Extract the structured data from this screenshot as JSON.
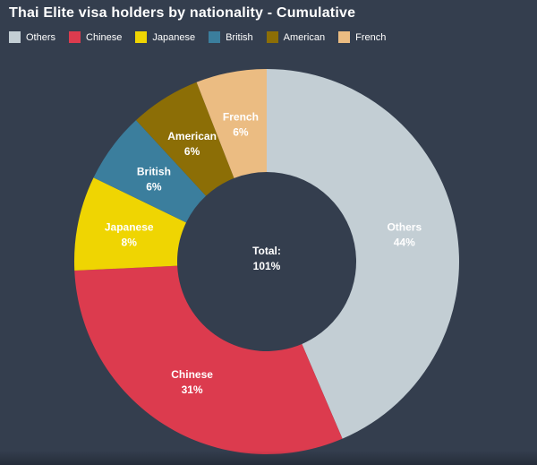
{
  "header": {
    "title": "Thai Elite visa holders by nationality - Cumulative"
  },
  "colors": {
    "background": "#343e4e",
    "title_text": "#ffffff",
    "legend_text": "#ffffff",
    "slice_label_text": "#ffffff"
  },
  "center": {
    "line1": "Total:",
    "line2": "101%"
  },
  "chart_data": {
    "type": "pie",
    "subtype": "donut",
    "title": "Thai Elite visa holders by nationality - Cumulative",
    "legend_position": "top-left",
    "start_angle_deg": 0,
    "direction": "clockwise",
    "center_label": {
      "text": "Total:",
      "value": "101%"
    },
    "slices": [
      {
        "label": "Others",
        "value": 44,
        "display": "44%",
        "color": "#c3ced4"
      },
      {
        "label": "Chinese",
        "value": 31,
        "display": "31%",
        "color": "#dc3b4e"
      },
      {
        "label": "Japanese",
        "value": 8,
        "display": "8%",
        "color": "#efd502"
      },
      {
        "label": "British",
        "value": 6,
        "display": "6%",
        "color": "#3b7e9d"
      },
      {
        "label": "American",
        "value": 6,
        "display": "6%",
        "color": "#8c6e06"
      },
      {
        "label": "French",
        "value": 6,
        "display": "6%",
        "color": "#ebbc82"
      }
    ]
  }
}
